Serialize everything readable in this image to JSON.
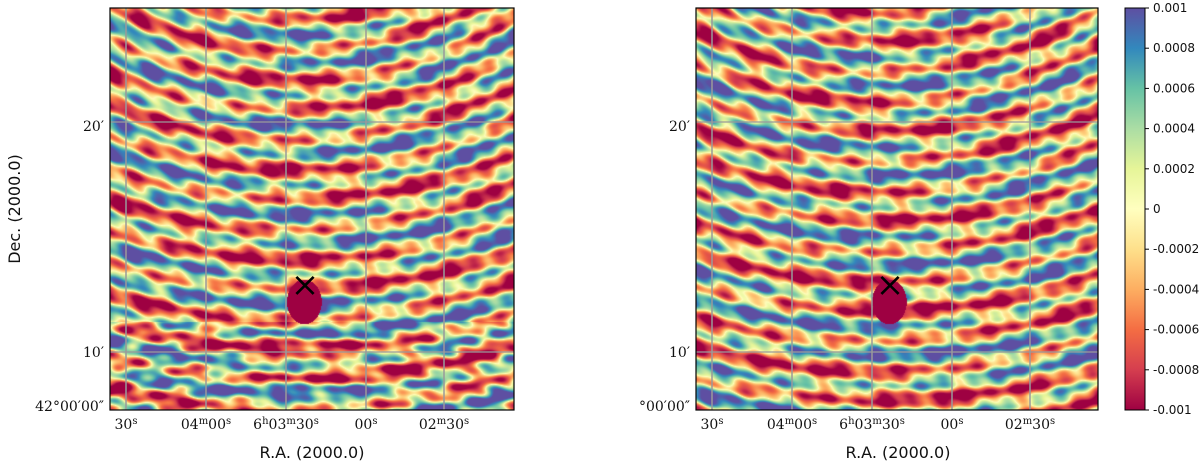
{
  "figure": {
    "panels": [
      {
        "id": "left",
        "show_y_title": true,
        "x_title": "R.A. (2000.0)",
        "y_title": "Dec. (2000.0)",
        "x_ticks": [
          "30s",
          "04m00s",
          "6h03m30s",
          "00s",
          "02m30s"
        ],
        "y_ticks": [
          "20′",
          "10′",
          "42°00′00″"
        ],
        "marker": "×",
        "seed": 1
      },
      {
        "id": "right",
        "show_y_title": false,
        "x_title": "R.A. (2000.0)",
        "y_title": "",
        "x_ticks": [
          "30s",
          "04m00s",
          "6h03m30s",
          "00s",
          "02m30s"
        ],
        "y_ticks": [
          "20′",
          "10′",
          "°00′00″"
        ],
        "marker": "×",
        "seed": 2
      }
    ],
    "colorbar": {
      "ticks": [
        "0.001",
        "0.0008",
        "0.0006",
        "0.0004",
        "0.0002",
        "0",
        "-0.0002",
        "-0.0004",
        "-0.0006",
        "-0.0008",
        "-0.001"
      ],
      "colormap": "Spectral",
      "range": [
        -0.001,
        0.001
      ]
    },
    "colors": {
      "grid": "#9a9a9a",
      "marker": "#000000",
      "stops": [
        "#9e0142",
        "#d53e4f",
        "#f46d43",
        "#fdae61",
        "#fee08b",
        "#ffffbf",
        "#e6f598",
        "#abdda4",
        "#66c2a5",
        "#3288bd",
        "#5e4fa2"
      ]
    }
  }
}
